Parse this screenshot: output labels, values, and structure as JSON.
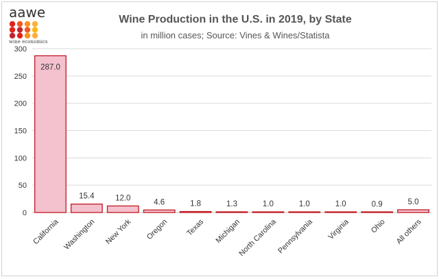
{
  "logo": {
    "name": "aawe",
    "tagline": "wine economics",
    "dot_colors": [
      "#e2231a",
      "#f15a24",
      "#f7941d",
      "#fbb040",
      "#e2231a",
      "#c1272d",
      "#f15a24",
      "#fcb813",
      "#c1272d",
      "#e2231a",
      "#f7941d",
      "#fbb040"
    ]
  },
  "chart_data": {
    "type": "bar",
    "title": "Wine Production in the U.S. in 2019, by State",
    "subtitle": "in million cases; Source: Vines & Wines/Statista",
    "xlabel": "",
    "ylabel": "",
    "categories": [
      "California",
      "Washington",
      "New York",
      "Oregon",
      "Texas",
      "Michigan",
      "North Carolina",
      "Pennsylvania",
      "Virginia",
      "Ohio",
      "All others"
    ],
    "values": [
      287.0,
      15.4,
      12.0,
      4.6,
      1.8,
      1.3,
      1.0,
      1.0,
      1.0,
      0.9,
      5.0
    ],
    "data_labels": [
      "287.0",
      "15.4",
      "12.0",
      "4.6",
      "1.8",
      "1.3",
      "1.0",
      "1.0",
      "1.0",
      "0.9",
      "5.0"
    ],
    "ylim": [
      0,
      300
    ],
    "yticks": [
      0,
      50,
      100,
      150,
      200,
      250,
      300
    ],
    "grid": true,
    "legend": "none",
    "colors": {
      "bar_fill": "#f4c1cf",
      "bar_stroke": "#c0171f"
    }
  }
}
